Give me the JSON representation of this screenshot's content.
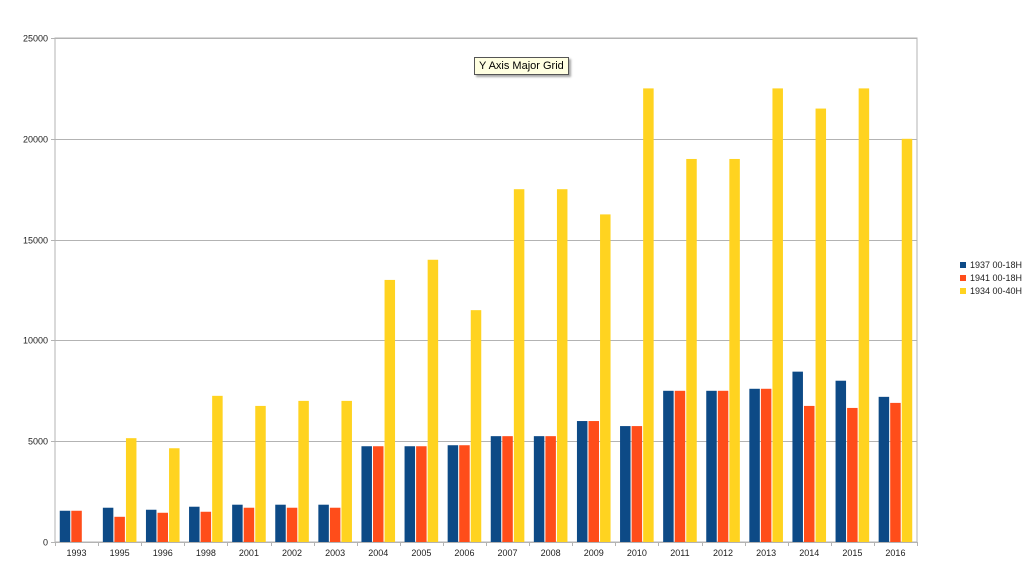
{
  "tooltip": {
    "text": "Y Axis Major Grid"
  },
  "chart_data": {
    "type": "bar",
    "title": "",
    "xlabel": "",
    "ylabel": "",
    "ylim": [
      0,
      25000
    ],
    "yticks": [
      0,
      5000,
      10000,
      15000,
      20000,
      25000
    ],
    "grid": true,
    "legend_position": "right",
    "categories": [
      "1993",
      "1995",
      "1996",
      "1998",
      "2001",
      "2002",
      "2003",
      "2004",
      "2005",
      "2006",
      "2007",
      "2008",
      "2009",
      "2010",
      "2011",
      "2012",
      "2013",
      "2014",
      "2015",
      "2016"
    ],
    "series": [
      {
        "name": "1937 00-18H",
        "color": "#0d4a86",
        "values": [
          1550,
          1700,
          1600,
          1750,
          1850,
          1850,
          1850,
          4750,
          4750,
          4800,
          5250,
          5250,
          6000,
          5750,
          7500,
          7500,
          7600,
          8450,
          8000,
          7200
        ]
      },
      {
        "name": "1941 00-18H",
        "color": "#ff4d1a",
        "values": [
          1550,
          1250,
          1450,
          1500,
          1700,
          1700,
          1700,
          4750,
          4750,
          4800,
          5250,
          5250,
          6000,
          5750,
          7500,
          7500,
          7600,
          6750,
          6650,
          6900
        ]
      },
      {
        "name": "1934 00-40H",
        "color": "#ffd320",
        "values": [
          0,
          5150,
          4650,
          7250,
          6750,
          7000,
          7000,
          13000,
          14000,
          11500,
          17500,
          17500,
          16250,
          22500,
          19000,
          19000,
          22500,
          21500,
          22500,
          20000
        ]
      }
    ]
  }
}
